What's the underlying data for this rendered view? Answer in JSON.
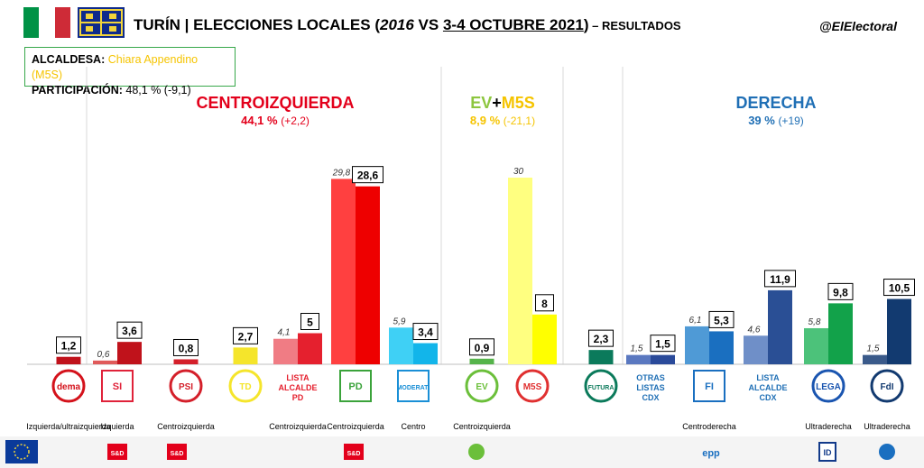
{
  "header": {
    "title_main": "TURÍN | ELECCIONES LOCALES (",
    "title_year_old": "2016",
    "title_vs": " VS ",
    "title_date_new": "3-4 OCTUBRE 2021",
    "title_close": ")",
    "title_sub": " – RESULTADOS",
    "handle": "@ElElectoral"
  },
  "info": {
    "mayor_label": "ALCALDESA:",
    "mayor_value": "Chiara Appendino (M5S)",
    "turnout_label": "PARTICIPACIÓN:",
    "turnout_value": "48,1 % (-9,1)"
  },
  "colors": {
    "italy_green": "#009246",
    "italy_white": "#ffffff",
    "italy_red": "#ce2b37",
    "city_blue": "#0e2a8c",
    "city_yellow": "#f2d43a",
    "left": "#e3001b",
    "green_ev": "#8dc63f",
    "m5s": "#f5c400",
    "right": "#1f6fb5"
  },
  "chart_data": {
    "type": "bar",
    "ylim": [
      0,
      32
    ],
    "blocks": [
      {
        "name": "CENTROIZQUIERDA",
        "result": "44,1 %",
        "change": "(+2,2)",
        "color": "#e3001b"
      },
      {
        "name_a": "EV",
        "name_plus": "+",
        "name_b": "M5S",
        "result": "8,9 %",
        "change": "(-21,1)",
        "color_a": "#8dc63f",
        "color_b": "#f5c400"
      },
      {
        "name": "DERECHA",
        "result": "39 %",
        "change": "(+19)",
        "color": "#1f6fb5"
      }
    ],
    "series": [
      {
        "name": "2016"
      },
      {
        "name": "2021"
      }
    ],
    "parties": [
      {
        "id": "dema",
        "old": null,
        "old_label": "",
        "new": 1.2,
        "new_label": "1,2",
        "color_old": "#e8a0a0",
        "color_new": "#c0121b",
        "logo_text": "dema",
        "logo_color": "#d4121b",
        "logo_kind": "circle",
        "party_label": "",
        "ideology": "Izquierda/ultraizquierda"
      },
      {
        "id": "si",
        "old": 0.6,
        "old_label": "0,6",
        "new": 3.6,
        "new_label": "3,6",
        "color_old": "#e05a5a",
        "color_new": "#c0121b",
        "logo_text": "SI",
        "logo_color": "#e0223a",
        "logo_kind": "square",
        "party_label": "",
        "ideology": "Izquierda"
      },
      {
        "id": "psi",
        "old": null,
        "old_label": "",
        "new": 0.8,
        "new_label": "0,8",
        "color_old": "#e05a5a",
        "color_new": "#d41f2a",
        "logo_text": "PSI",
        "logo_color": "#d41f2a",
        "logo_kind": "circle",
        "party_label": "",
        "ideology": "Centroizquierda"
      },
      {
        "id": "torino",
        "old": null,
        "old_label": "",
        "new": 2.7,
        "new_label": "2,7",
        "color_old": "#f7e97a",
        "color_new": "#f5e52b",
        "logo_text": "TD",
        "logo_color": "#f5e52b",
        "logo_kind": "circle",
        "party_label": "",
        "ideology": ""
      },
      {
        "id": "lista-pd",
        "old": 4.1,
        "old_label": "4,1",
        "new": 5,
        "new_label": "5",
        "color_old": "#f07c84",
        "color_new": "#e5202e",
        "logo_text": "",
        "logo_color": "#e5202e",
        "logo_kind": "none",
        "party_label": "LISTA ALCALDE PD",
        "party_label_color": "#e5202e",
        "ideology": "Centroizquierda"
      },
      {
        "id": "pd",
        "old": 29.8,
        "old_label": "29,8",
        "new": 28.6,
        "new_label": "28,6",
        "color_old": "#ff4040",
        "color_new": "#ee0000",
        "logo_text": "PD",
        "logo_color": "#3ba33b",
        "logo_kind": "square",
        "party_label": "",
        "ideology": "Centroizquierda"
      },
      {
        "id": "moderati",
        "old": 5.9,
        "old_label": "5,9",
        "new": 3.4,
        "new_label": "3,4",
        "color_old": "#3fd0f5",
        "color_new": "#12b5ea",
        "logo_text": "MODERATI",
        "logo_color": "#1a8fd6",
        "logo_kind": "square",
        "party_label": "",
        "ideology": "Centro"
      },
      {
        "id": "europa-verde",
        "old": null,
        "old_label": "",
        "new": 0.9,
        "new_label": "0,9",
        "color_old": "#8dd77a",
        "color_new": "#55b34a",
        "logo_text": "EV",
        "logo_color": "#6bbf3a",
        "logo_kind": "circle",
        "party_label": "",
        "ideology": "Centroizquierda"
      },
      {
        "id": "m5s",
        "old": 30,
        "old_label": "30",
        "new": 8,
        "new_label": "8",
        "color_old": "#ffff80",
        "color_new": "#ffff00",
        "logo_text": "M5S",
        "logo_color": "#e03030",
        "logo_kind": "circle",
        "party_label": "",
        "ideology": ""
      },
      {
        "id": "futura",
        "old": null,
        "old_label": "",
        "new": 2.3,
        "new_label": "2,3",
        "color_old": "#3a9a7a",
        "color_new": "#0b7a5b",
        "logo_text": "FUTURA",
        "logo_color": "#0b7a5b",
        "logo_kind": "circle",
        "party_label": "",
        "ideology": ""
      },
      {
        "id": "otras",
        "old": 1.5,
        "old_label": "1,5",
        "new": 1.5,
        "new_label": "1,5",
        "color_old": "#5a78c0",
        "color_new": "#2a4a9a",
        "logo_text": "",
        "logo_color": "#1f6fb5",
        "logo_kind": "none",
        "party_label": "OTRAS LISTAS CDX",
        "party_label_color": "#1f6fb5",
        "ideology": ""
      },
      {
        "id": "forza",
        "old": 6.1,
        "old_label": "6,1",
        "new": 5.3,
        "new_label": "5,3",
        "color_old": "#4f9ad6",
        "color_new": "#1a6fc0",
        "logo_text": "FI",
        "logo_color": "#1a6fc0",
        "logo_kind": "square",
        "party_label": "",
        "ideology": "Centroderecha"
      },
      {
        "id": "lista-cdx",
        "old": 4.6,
        "old_label": "4,6",
        "new": 11.9,
        "new_label": "11,9",
        "color_old": "#6f8fc8",
        "color_new": "#2a4f95",
        "logo_text": "",
        "logo_color": "#1f6fb5",
        "logo_kind": "none",
        "party_label": "LISTA ALCALDE CDX",
        "party_label_color": "#1f6fb5",
        "ideology": ""
      },
      {
        "id": "lega",
        "old": 5.8,
        "old_label": "5,8",
        "new": 9.8,
        "new_label": "9,8",
        "color_old": "#4cc27a",
        "color_new": "#12a24a",
        "logo_text": "LEGA",
        "logo_color": "#1a55b0",
        "logo_kind": "circle",
        "party_label": "",
        "ideology": "Ultraderecha"
      },
      {
        "id": "fdi",
        "old": 1.5,
        "old_label": "1,5",
        "new": 10.5,
        "new_label": "10,5",
        "color_old": "#3a5a8a",
        "color_new": "#123a70",
        "logo_text": "FdI",
        "logo_color": "#123a70",
        "logo_kind": "circle",
        "party_label": "",
        "ideology": "Ultraderecha"
      }
    ]
  },
  "footer": {
    "items": [
      {
        "id": "eu",
        "text": "",
        "color": "#0a3a9a"
      },
      {
        "id": "guengl-sd",
        "text": "S&D",
        "color": "#e3001b"
      },
      {
        "id": "sd-1",
        "text": "S&D",
        "color": "#e3001b"
      },
      {
        "id": "sd-2",
        "text": "S&D",
        "color": "#e3001b"
      },
      {
        "id": "greens",
        "text": "",
        "color": "#6bbf3a"
      },
      {
        "id": "epp",
        "text": "epp",
        "color": "#1a6fc0"
      },
      {
        "id": "id",
        "text": "ID",
        "color": "#123a8a"
      },
      {
        "id": "ecr",
        "text": "",
        "color": "#1a6fc0"
      }
    ]
  }
}
